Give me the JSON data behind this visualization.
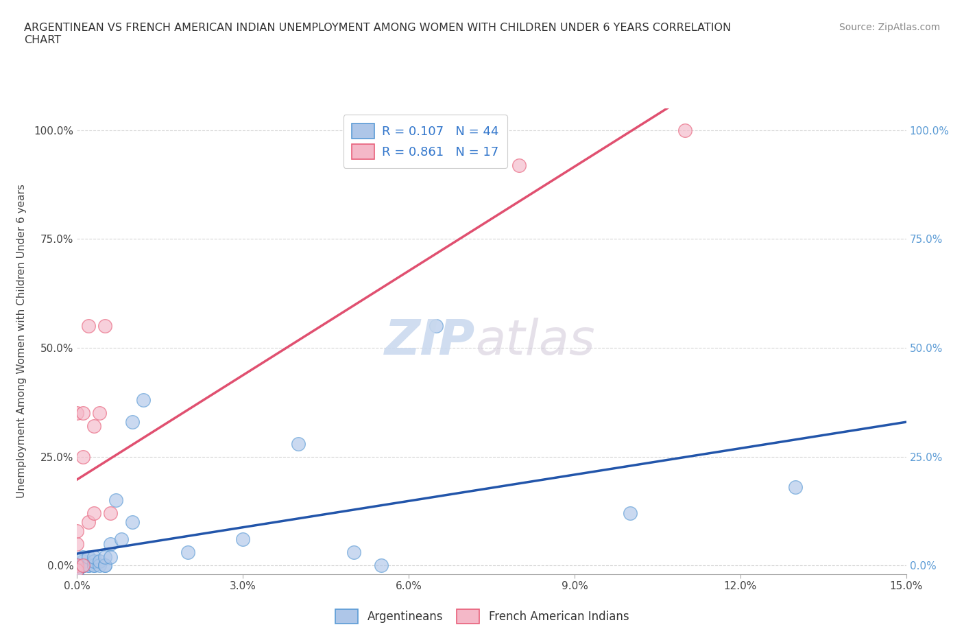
{
  "title_line1": "ARGENTINEAN VS FRENCH AMERICAN INDIAN UNEMPLOYMENT AMONG WOMEN WITH CHILDREN UNDER 6 YEARS CORRELATION",
  "title_line2": "CHART",
  "source_text": "Source: ZipAtlas.com",
  "ylabel": "Unemployment Among Women with Children Under 6 years",
  "x_min": 0.0,
  "x_max": 0.15,
  "y_min": -0.02,
  "y_max": 1.05,
  "x_ticks": [
    0.0,
    0.03,
    0.06,
    0.09,
    0.12,
    0.15
  ],
  "x_tick_labels": [
    "0.0%",
    "3.0%",
    "6.0%",
    "9.0%",
    "12.0%",
    "15.0%"
  ],
  "y_ticks": [
    0.0,
    0.25,
    0.5,
    0.75,
    1.0
  ],
  "y_tick_labels": [
    "0.0%",
    "25.0%",
    "50.0%",
    "75.0%",
    "100.0%"
  ],
  "argentinean_color": "#aec6e8",
  "french_color": "#f4b8c8",
  "argentinean_edge": "#5b9bd5",
  "french_edge": "#e8607a",
  "regression_blue": "#2255aa",
  "regression_pink": "#e05070",
  "legend_R_argentinean": "0.107",
  "legend_N_argentinean": "44",
  "legend_R_french": "0.861",
  "legend_N_french": "17",
  "watermark_zip": "ZIP",
  "watermark_atlas": "atlas",
  "argentinean_x": [
    0.0,
    0.0,
    0.0,
    0.0,
    0.0,
    0.0,
    0.0,
    0.0,
    0.0,
    0.0,
    0.0,
    0.001,
    0.001,
    0.001,
    0.001,
    0.001,
    0.001,
    0.002,
    0.002,
    0.002,
    0.003,
    0.003,
    0.003,
    0.003,
    0.004,
    0.004,
    0.005,
    0.005,
    0.005,
    0.006,
    0.006,
    0.007,
    0.008,
    0.01,
    0.01,
    0.012,
    0.02,
    0.03,
    0.04,
    0.05,
    0.055,
    0.065,
    0.1,
    0.13
  ],
  "argentinean_y": [
    0.0,
    0.0,
    0.0,
    0.0,
    0.0,
    0.0,
    0.0,
    -0.01,
    -0.01,
    -0.015,
    -0.015,
    0.0,
    0.0,
    0.0,
    0.0,
    0.01,
    0.02,
    0.0,
    0.0,
    0.02,
    0.0,
    0.0,
    0.01,
    0.02,
    0.0,
    0.01,
    0.0,
    0.0,
    0.02,
    0.05,
    0.02,
    0.15,
    0.06,
    0.1,
    0.33,
    0.38,
    0.03,
    0.06,
    0.28,
    0.03,
    0.0,
    0.55,
    0.12,
    0.18
  ],
  "french_x": [
    0.0,
    0.0,
    0.0,
    0.0,
    0.0,
    0.001,
    0.001,
    0.001,
    0.002,
    0.002,
    0.003,
    0.003,
    0.004,
    0.005,
    0.006,
    0.08,
    0.11
  ],
  "french_y": [
    0.0,
    -0.01,
    0.05,
    0.08,
    0.35,
    0.0,
    0.25,
    0.35,
    0.1,
    0.55,
    0.12,
    0.32,
    0.35,
    0.55,
    0.12,
    0.92,
    1.0
  ]
}
